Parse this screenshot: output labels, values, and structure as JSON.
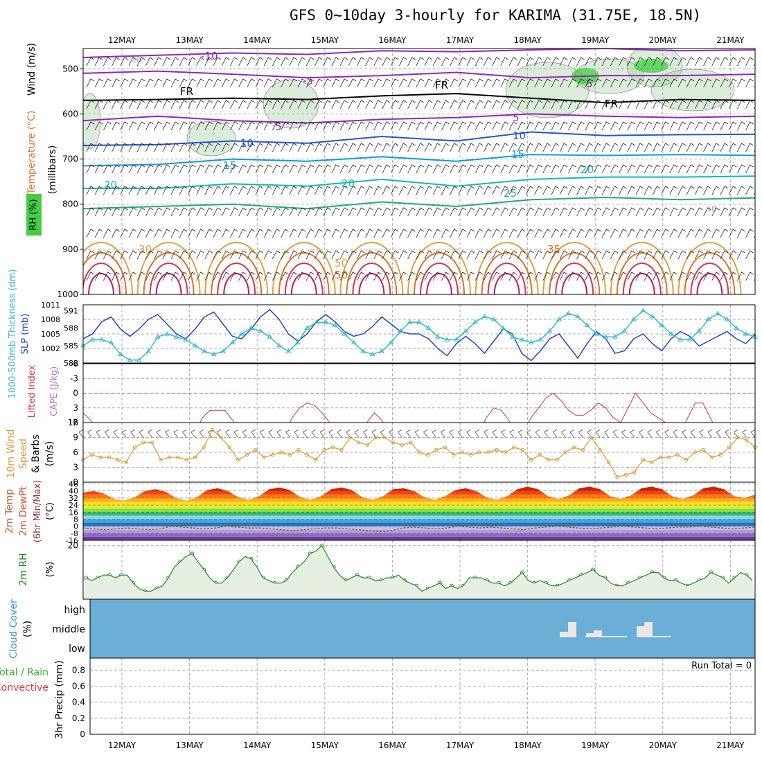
{
  "title": "GFS 0~10day 3-hourly for KARIMA (31.75E, 18.5N)",
  "colors": {
    "grid": "#aaaaaa",
    "slp": "#2244cc",
    "thickness": "#33bbcc",
    "lifted": "#dd3333",
    "wind": "#e09a30",
    "rh2m": "#228822",
    "rh2m_fill": "#e6f0e2",
    "cloud_bg": "#6baed6",
    "cloud_bar": "#e8e8e8",
    "rh_shade": "#9cc996",
    "rh_strong": "#33cc33"
  },
  "chart_data": [
    {
      "type": "line",
      "panel": "upper-air",
      "ylabel_parts": [
        "RH (%)",
        "Temperature (°C)",
        "Wind (m/s)"
      ],
      "ylabel_units": "(millibars)",
      "x_dates": [
        "12MAY",
        "13MAY",
        "14MAY",
        "15MAY",
        "16MAY",
        "17MAY",
        "18MAY",
        "19MAY",
        "20MAY",
        "21MAY"
      ],
      "yticks": [
        500,
        600,
        700,
        800,
        900,
        1000
      ],
      "ylim": [
        1000,
        455
      ],
      "contour_labels": [
        "-10",
        "-5",
        "FR",
        "FR",
        "FR",
        "5",
        "5",
        "5",
        "10",
        "10",
        "15",
        "15",
        "20",
        "20",
        "20",
        "25",
        "30",
        "35",
        "50",
        "50",
        "10",
        "10"
      ],
      "series": [
        {
          "name": "-10",
          "pressure": [
            475,
            470,
            465,
            468,
            460,
            462,
            458,
            455,
            460,
            458
          ]
        },
        {
          "name": "-5",
          "pressure": [
            510,
            505,
            512,
            520,
            515,
            508,
            520,
            515,
            515,
            512
          ]
        },
        {
          "name": "FR",
          "pressure": [
            570,
            568,
            565,
            568,
            560,
            555,
            565,
            575,
            568,
            570
          ]
        },
        {
          "name": "5",
          "pressure": [
            615,
            605,
            615,
            620,
            612,
            608,
            600,
            605,
            608,
            605
          ]
        },
        {
          "name": "10",
          "pressure": [
            670,
            668,
            660,
            665,
            650,
            660,
            640,
            648,
            646,
            645
          ]
        },
        {
          "name": "15",
          "pressure": [
            715,
            712,
            700,
            705,
            695,
            705,
            690,
            692,
            690,
            692
          ]
        },
        {
          "name": "20",
          "pressure": [
            765,
            765,
            755,
            760,
            745,
            760,
            745,
            740,
            740,
            738
          ]
        },
        {
          "name": "25",
          "pressure": [
            810,
            805,
            800,
            810,
            795,
            805,
            790,
            785,
            790,
            786
          ]
        }
      ]
    },
    {
      "type": "line",
      "panel": "slp-thickness",
      "ylabel_parts": [
        "1000-500mb Thickness (dm)",
        "SLP (mb)"
      ],
      "yticks_left": [
        582,
        585,
        588,
        591
      ],
      "yticks_right": [
        1002,
        1005,
        1008,
        1011
      ],
      "ylim_left": [
        582,
        592
      ],
      "ylim_right": [
        999,
        1011
      ],
      "series": [
        {
          "name": "SLP (mb)",
          "axis": "right",
          "values": [
            1004,
            1005,
            1007.5,
            1008.5,
            1006,
            1004.5,
            1006,
            1008,
            1009,
            1007,
            1005,
            1004,
            1006,
            1008.5,
            1009.5,
            1007,
            1004.5,
            1004,
            1006,
            1008.5,
            1010,
            1008,
            1005,
            1003.5,
            1005,
            1007.5,
            1009,
            1007.5,
            1005.5,
            1004.5,
            1005,
            1006.5,
            1008.5,
            1007,
            1005.5,
            1005,
            1005,
            1004,
            1002,
            1000.5,
            1003,
            1004.5,
            1003,
            1001,
            1003.5,
            1006,
            1005,
            1001,
            999.5,
            1001.5,
            1004,
            1005,
            1002.5,
            1000,
            1003,
            1005.5,
            1004,
            1001,
            1001.5,
            1004,
            1005,
            1003,
            1001.5,
            1004,
            1005.5,
            1004.5,
            1002.5,
            1003.5,
            1004.5,
            1005.5,
            1004,
            1003,
            1005
          ]
        },
        {
          "name": "1000-500mb Thickness (dm)",
          "axis": "left",
          "values": [
            585,
            586,
            586,
            585.5,
            583.5,
            582.5,
            582.5,
            584,
            586.5,
            587,
            586.5,
            586,
            585,
            584,
            583.5,
            584,
            585.5,
            587,
            588,
            587.5,
            586.5,
            585,
            584,
            585.5,
            588,
            589,
            589,
            588.5,
            587,
            585.5,
            584,
            583.5,
            584,
            585.5,
            587.5,
            589,
            589,
            588,
            586.5,
            586,
            586,
            587.5,
            589,
            590,
            589.5,
            588,
            586.5,
            586,
            585.5,
            586,
            587.5,
            589.5,
            590.5,
            590,
            588.5,
            587,
            586.5,
            586.5,
            587.5,
            589.5,
            591,
            590,
            588.5,
            587,
            586,
            586,
            587.5,
            589.5,
            590.5,
            589.5,
            588,
            587,
            586.5
          ]
        }
      ]
    },
    {
      "type": "line",
      "panel": "lifted-cape",
      "ylabel_parts": [
        "Lifted Index",
        "CAPE (J/kg)"
      ],
      "yticks": [
        6,
        3,
        0,
        -3,
        -6
      ],
      "ylim": [
        6,
        -6
      ],
      "right_tick": "12",
      "reference_line": 0,
      "series": [
        {
          "name": "Lifted Index",
          "values": [
            4,
            5.5,
            8,
            8,
            8,
            8,
            8,
            7,
            7,
            8,
            8,
            8,
            8,
            8,
            8,
            8,
            5,
            3.5,
            3.5,
            3.5,
            5.5,
            8,
            8,
            8,
            8,
            8,
            8,
            8,
            5,
            3,
            2,
            2.5,
            4,
            6,
            8,
            8,
            8,
            8,
            6,
            4,
            5.5,
            8,
            8,
            8,
            8,
            8,
            8,
            8,
            8,
            8,
            8,
            8,
            8,
            8,
            5,
            3,
            3.5,
            5.5,
            8,
            8,
            5,
            3,
            1,
            0,
            1.5,
            3.5,
            4.5,
            4.5,
            3.5,
            2,
            3,
            5,
            6,
            3,
            0,
            2,
            4,
            5,
            6,
            8,
            8,
            5,
            2,
            2,
            5,
            8,
            8,
            8,
            8,
            8,
            8
          ]
        }
      ]
    },
    {
      "type": "line",
      "panel": "wind10m",
      "ylabel_parts": [
        "10m Wind",
        "Speed",
        "& Barbs",
        "(m/s)"
      ],
      "yticks": [
        0,
        3,
        6,
        9,
        12
      ],
      "ylim": [
        0,
        12
      ],
      "series": [
        {
          "name": "10m Wind Speed",
          "values": [
            4.5,
            5.5,
            5,
            5,
            4.5,
            4,
            7,
            8,
            8,
            4.5,
            5,
            5,
            4.5,
            5,
            7,
            10.5,
            9,
            7,
            4.5,
            5.5,
            6.5,
            5,
            5.5,
            6,
            5.5,
            6.5,
            5.5,
            4.5,
            6.5,
            7,
            6.5,
            9,
            8,
            7.5,
            9,
            9,
            8,
            7.5,
            8,
            6,
            5.5,
            6.5,
            7,
            5.5,
            6,
            5.5,
            6,
            6,
            6.5,
            6,
            7,
            6.5,
            4.5,
            5.5,
            4.5,
            4.5,
            6,
            7,
            6.5,
            9,
            6.5,
            4,
            1,
            1.5,
            2,
            4.5,
            4,
            5,
            5,
            5.5,
            4.5,
            6,
            6.5,
            5,
            5.5,
            7,
            9,
            8.5,
            7
          ]
        }
      ]
    },
    {
      "type": "area",
      "panel": "temp2m",
      "ylabel_parts": [
        "2m Temp",
        "2m DewPt",
        "(6hr Min/Max)",
        "(°C)"
      ],
      "yticks": [
        -16,
        -8,
        0,
        8,
        16,
        24,
        32,
        40,
        48
      ],
      "tick_labels": [
        "-16",
        "-8",
        "0",
        "8",
        "16",
        "24",
        "32",
        "40",
        "48"
      ],
      "ylim": [
        -16,
        50
      ],
      "series": [
        {
          "name": "2m Temp",
          "values": [
            38,
            40,
            37,
            31,
            29,
            33,
            40,
            42,
            39,
            32,
            29,
            33,
            41,
            43,
            40,
            33,
            30,
            34,
            42,
            44,
            41,
            33,
            30,
            34,
            42,
            44,
            41,
            33,
            30,
            34,
            42,
            43,
            40,
            33,
            30,
            34,
            41,
            43,
            40,
            33,
            30,
            34,
            42,
            45,
            42,
            34,
            31,
            35,
            43,
            45,
            42,
            34,
            31,
            35,
            43,
            45,
            42,
            34,
            31,
            35,
            43,
            45,
            42,
            34,
            32,
            36
          ]
        },
        {
          "name": "2m DewPt",
          "values": [
            -2,
            -3,
            -4,
            -3,
            -2,
            -3,
            -4,
            -3,
            0,
            -1,
            -2,
            -3,
            -2,
            0,
            -1,
            -2,
            -2,
            -3,
            -4,
            -5,
            -4,
            -3,
            -2,
            -2,
            -3,
            -4,
            -5,
            -6,
            -5,
            -2,
            -1,
            -2,
            -3,
            -2,
            0,
            -1,
            -2,
            -1,
            -2,
            -3,
            -4,
            -2,
            -1,
            0,
            -1,
            -2,
            -3,
            -2,
            -1,
            0,
            -1,
            -2,
            -3,
            -2,
            -1,
            -1,
            0,
            -1,
            -2,
            -3,
            -2,
            -1
          ]
        }
      ]
    },
    {
      "type": "area",
      "panel": "rh2m",
      "ylabel_parts": [
        "2m RH",
        "(%)"
      ],
      "yticks": [
        20
      ],
      "ylim": [
        0,
        22
      ],
      "series": [
        {
          "name": "2m RH",
          "values": [
            8,
            7,
            8,
            9,
            9,
            8,
            9,
            9,
            6,
            4,
            3,
            3,
            4,
            5,
            8,
            12,
            14,
            16,
            17,
            14,
            11,
            8,
            6,
            6,
            8,
            11,
            14,
            16,
            15,
            12,
            8,
            7,
            6,
            6,
            7,
            10,
            12,
            14,
            17,
            18,
            20,
            16,
            12,
            9,
            7,
            8,
            9,
            8,
            8,
            7,
            7,
            8,
            8,
            9,
            7,
            6,
            5,
            3,
            4,
            5,
            6,
            4,
            5,
            4,
            5,
            8,
            8,
            8,
            7,
            6,
            6,
            5,
            6,
            8,
            10,
            7,
            6,
            7,
            6,
            5,
            5,
            6,
            7,
            8,
            9,
            10,
            11,
            9,
            8,
            6,
            5,
            5,
            6,
            7,
            8,
            9,
            10,
            10,
            8,
            7,
            7,
            6,
            5,
            6,
            7,
            8,
            10,
            9,
            8,
            6,
            8,
            10,
            9,
            7
          ]
        }
      ]
    },
    {
      "type": "bar",
      "panel": "cloud-cover",
      "ylabel_parts": [
        "Cloud Cover",
        "(%)"
      ],
      "levels": [
        "high",
        "middle",
        "low"
      ],
      "series": [
        {
          "name": "middle",
          "x": [
            "18MAY",
            "18MAY",
            "19MAY",
            "19MAY",
            "19MAY",
            "20MAY",
            "20MAY"
          ],
          "values": [
            8,
            22,
            6,
            10,
            2,
            16,
            22
          ]
        }
      ]
    },
    {
      "type": "line",
      "panel": "precip",
      "ylabel_parts": [
        "Total / Rain",
        "Convective",
        "3hr Precip (mm)"
      ],
      "label_total": "Total / Rain",
      "label_conv": "Convective",
      "ylabel_mm": "3hr Precip (mm)",
      "yticks": [
        "0",
        "0.2",
        "0.4",
        "0.6",
        "0.8"
      ],
      "ylim": [
        0,
        0.95
      ],
      "run_total": "Run Total = 0",
      "series": [
        {
          "name": "precip",
          "values": [
            0,
            0,
            0,
            0,
            0,
            0,
            0,
            0,
            0,
            0
          ]
        }
      ]
    }
  ],
  "axis_labels": {
    "date_ticks": [
      "12MAY",
      "13MAY",
      "14MAY",
      "15MAY",
      "16MAY",
      "17MAY",
      "18MAY",
      "19MAY",
      "20MAY",
      "21MAY"
    ]
  }
}
